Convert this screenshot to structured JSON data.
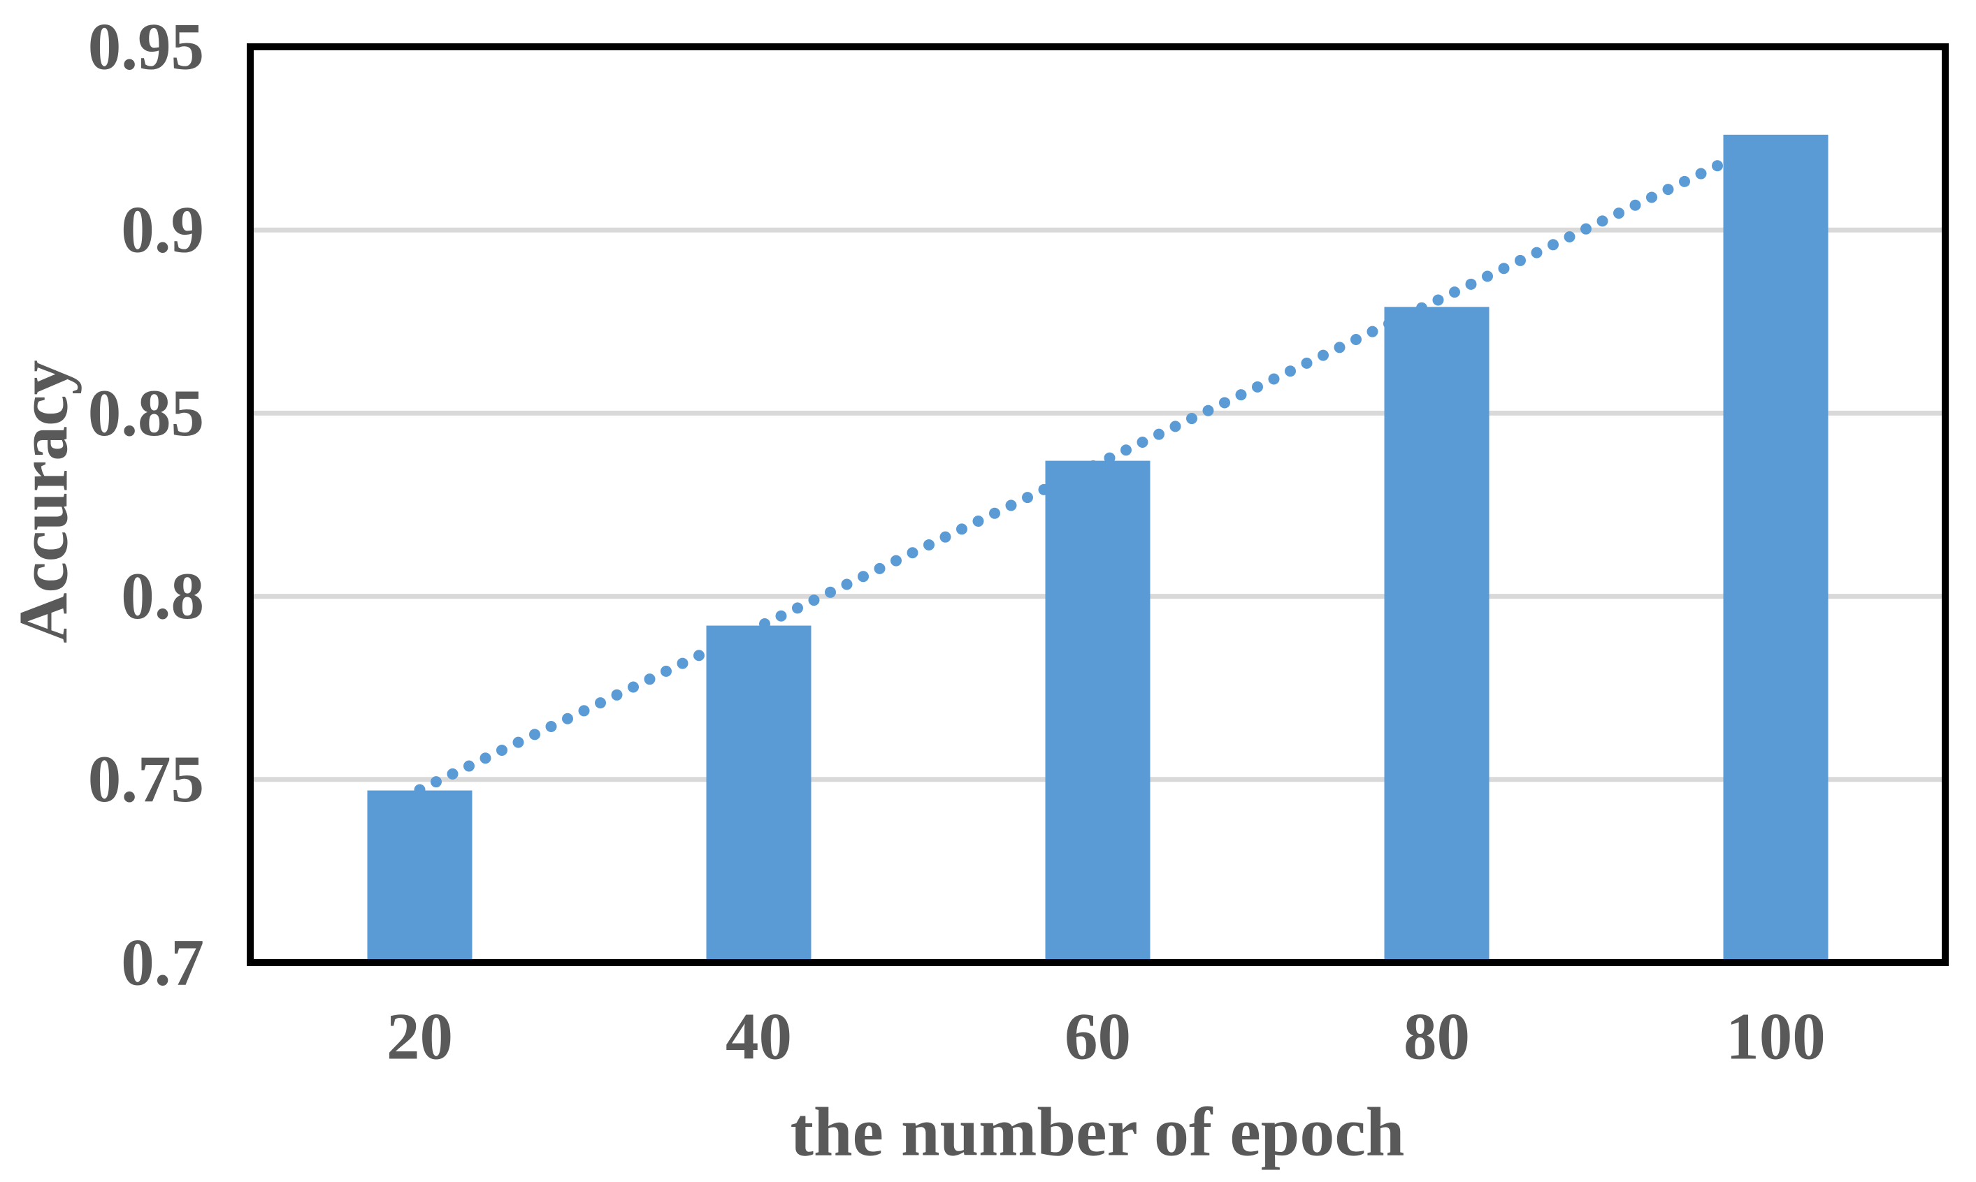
{
  "chart_data": {
    "type": "bar",
    "title": "",
    "xlabel": "the number of epoch",
    "ylabel": "Accuracy",
    "categories": [
      "20",
      "40",
      "60",
      "80",
      "100"
    ],
    "values": [
      0.747,
      0.792,
      0.837,
      0.879,
      0.926
    ],
    "series": [
      {
        "name": "Accuracy",
        "values": [
          0.747,
          0.792,
          0.837,
          0.879,
          0.926
        ]
      }
    ],
    "ylim": [
      0.7,
      0.95
    ],
    "yticks": [
      "0.95",
      "0.9",
      "0.85",
      "0.8",
      "0.75",
      "0.7"
    ],
    "grid": "horizontal",
    "legend": "none",
    "trendline": {
      "type": "linear",
      "style": "dotted"
    },
    "colors": {
      "bar": "#5B9BD5",
      "trendline_dot": "#5B9BD5",
      "gridline": "#D9D9D9",
      "axis_border": "#000000",
      "text": "#595959",
      "background": "#FFFFFF"
    }
  }
}
